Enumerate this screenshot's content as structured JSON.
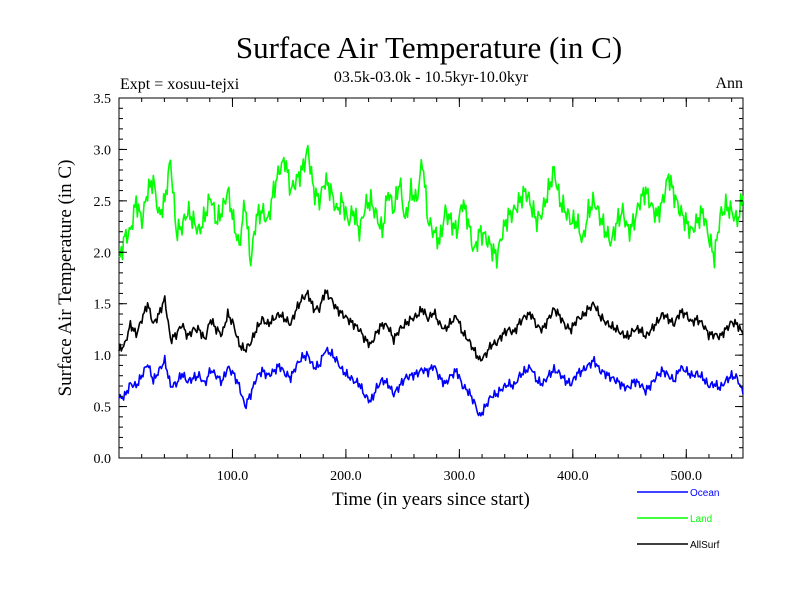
{
  "chart_data": {
    "type": "line",
    "title": "Surface Air Temperature (in C)",
    "subtitle": "03.5k-03.0k - 10.5kyr-10.0kyr",
    "expt_label": "Expt = xosuu-tejxi",
    "season_label": "Ann",
    "xlabel": "Time (in years since start)",
    "ylabel": "Surface Air Temperature (in C)",
    "xlim": [
      0,
      550
    ],
    "ylim": [
      0,
      3.5
    ],
    "x_ticks": [
      100,
      200,
      300,
      400,
      500
    ],
    "x_tick_labels": [
      "100.0",
      "200.0",
      "300.0",
      "400.0",
      "500.0"
    ],
    "y_ticks": [
      0,
      0.5,
      1.0,
      1.5,
      2.0,
      2.5,
      3.0,
      3.5
    ],
    "y_tick_labels": [
      "0.0",
      "0.5",
      "1.0",
      "1.5",
      "2.0",
      "2.5",
      "3.0",
      "3.5"
    ],
    "legend_position": "bottom-right",
    "series": [
      {
        "name": "Ocean",
        "color": "#0000ff",
        "values": [
          0.58,
          0.6,
          0.72,
          0.7,
          0.8,
          0.92,
          0.75,
          0.85,
          0.95,
          0.7,
          0.72,
          0.82,
          0.74,
          0.78,
          0.8,
          0.72,
          0.86,
          0.8,
          0.74,
          0.88,
          0.82,
          0.7,
          0.5,
          0.62,
          0.78,
          0.85,
          0.8,
          0.84,
          0.9,
          0.82,
          0.78,
          0.9,
          0.98,
          1.0,
          0.88,
          0.9,
          1.05,
          1.02,
          0.95,
          0.85,
          0.8,
          0.75,
          0.72,
          0.6,
          0.55,
          0.68,
          0.76,
          0.72,
          0.62,
          0.7,
          0.78,
          0.8,
          0.82,
          0.86,
          0.84,
          0.9,
          0.78,
          0.72,
          0.8,
          0.85,
          0.7,
          0.65,
          0.55,
          0.4,
          0.5,
          0.6,
          0.62,
          0.68,
          0.72,
          0.7,
          0.8,
          0.85,
          0.88,
          0.75,
          0.72,
          0.8,
          0.86,
          0.82,
          0.75,
          0.72,
          0.82,
          0.85,
          0.9,
          0.95,
          0.85,
          0.82,
          0.78,
          0.75,
          0.7,
          0.68,
          0.75,
          0.72,
          0.65,
          0.72,
          0.8,
          0.85,
          0.8,
          0.75,
          0.88,
          0.85,
          0.8,
          0.82,
          0.78,
          0.7,
          0.72,
          0.68,
          0.75,
          0.8,
          0.78,
          0.62
        ]
      },
      {
        "name": "Land",
        "color": "#00ff00",
        "values": [
          1.9,
          2.15,
          2.2,
          2.5,
          2.3,
          2.6,
          2.7,
          2.35,
          2.5,
          2.9,
          2.2,
          2.25,
          2.4,
          2.3,
          2.2,
          2.35,
          2.55,
          2.3,
          2.4,
          2.6,
          2.3,
          2.05,
          2.5,
          1.9,
          2.35,
          2.4,
          2.3,
          2.6,
          2.8,
          2.9,
          2.6,
          2.7,
          2.8,
          3.0,
          2.6,
          2.5,
          2.7,
          2.6,
          2.4,
          2.5,
          2.3,
          2.4,
          2.2,
          2.45,
          2.5,
          2.35,
          2.2,
          2.6,
          2.4,
          2.7,
          2.3,
          2.6,
          2.5,
          2.9,
          2.3,
          2.2,
          2.1,
          2.4,
          2.3,
          2.2,
          2.5,
          2.3,
          2.0,
          2.2,
          2.15,
          2.05,
          1.95,
          2.2,
          2.35,
          2.4,
          2.5,
          2.6,
          2.45,
          2.3,
          2.4,
          2.6,
          2.8,
          2.5,
          2.4,
          2.3,
          2.3,
          2.1,
          2.4,
          2.5,
          2.35,
          2.2,
          2.1,
          2.3,
          2.4,
          2.2,
          2.3,
          2.5,
          2.6,
          2.45,
          2.35,
          2.5,
          2.75,
          2.55,
          2.4,
          2.3,
          2.2,
          2.3,
          2.4,
          2.15,
          1.95,
          2.35,
          2.45,
          2.4,
          2.3,
          2.55
        ]
      },
      {
        "name": "AllSurf",
        "color": "#000000",
        "values": [
          1.05,
          1.1,
          1.3,
          1.2,
          1.35,
          1.5,
          1.3,
          1.4,
          1.55,
          1.15,
          1.2,
          1.3,
          1.18,
          1.25,
          1.25,
          1.15,
          1.35,
          1.25,
          1.2,
          1.4,
          1.3,
          1.1,
          1.05,
          1.12,
          1.25,
          1.35,
          1.3,
          1.35,
          1.4,
          1.35,
          1.3,
          1.45,
          1.55,
          1.6,
          1.45,
          1.45,
          1.62,
          1.55,
          1.45,
          1.4,
          1.35,
          1.3,
          1.25,
          1.15,
          1.1,
          1.22,
          1.3,
          1.28,
          1.15,
          1.25,
          1.3,
          1.35,
          1.38,
          1.45,
          1.35,
          1.42,
          1.3,
          1.25,
          1.32,
          1.38,
          1.22,
          1.15,
          1.05,
          0.95,
          1.0,
          1.1,
          1.12,
          1.2,
          1.25,
          1.22,
          1.32,
          1.38,
          1.4,
          1.28,
          1.25,
          1.35,
          1.45,
          1.38,
          1.28,
          1.25,
          1.35,
          1.38,
          1.45,
          1.5,
          1.38,
          1.32,
          1.28,
          1.25,
          1.2,
          1.18,
          1.25,
          1.25,
          1.18,
          1.25,
          1.32,
          1.4,
          1.35,
          1.3,
          1.42,
          1.4,
          1.32,
          1.35,
          1.3,
          1.2,
          1.2,
          1.18,
          1.25,
          1.32,
          1.3,
          1.2
        ]
      }
    ]
  }
}
